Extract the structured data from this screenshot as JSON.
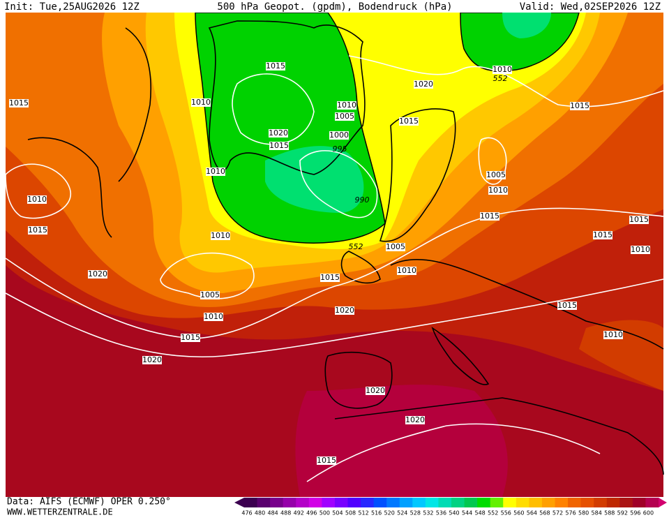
{
  "header": {
    "init": "Init: Tue,25AUG2026 12Z",
    "title": "500 hPa Geopot. (gpdm), Bodendruck (hPa)",
    "valid": "Valid: Wed,02SEP2026 12Z"
  },
  "isobar_labels": [
    1015,
    1010,
    1015,
    1020,
    1015,
    1010,
    1005,
    1000,
    995,
    990,
    1010,
    1010,
    1015,
    1010,
    552,
    1005,
    1020,
    1010,
    1015,
    1005,
    1010,
    1020,
    1015,
    1020,
    1020,
    1015,
    1010,
    552,
    1015,
    1005,
    1010,
    1015,
    1015,
    1015,
    1010,
    1015,
    1010,
    1020,
    1020,
    1015
  ],
  "legend": {
    "labels": [
      476,
      480,
      484,
      488,
      492,
      496,
      500,
      504,
      508,
      512,
      516,
      520,
      524,
      528,
      532,
      536,
      540,
      544,
      548,
      552,
      556,
      560,
      564,
      568,
      572,
      576,
      580,
      584,
      588,
      592,
      596,
      600
    ],
    "colors": [
      "#3c0050",
      "#5a006e",
      "#78008c",
      "#9600aa",
      "#b400c8",
      "#d200e6",
      "#a000ff",
      "#7800ff",
      "#5000ff",
      "#2828ff",
      "#0050ff",
      "#0078ff",
      "#00a0ff",
      "#00c8ff",
      "#00e6e6",
      "#00dcb4",
      "#00d282",
      "#00c850",
      "#00dc00",
      "#64f000",
      "#ffff00",
      "#ffdc00",
      "#ffbe00",
      "#ffa000",
      "#ff8200",
      "#f06400",
      "#e65000",
      "#d23c00",
      "#be2800",
      "#aa1414",
      "#a00028",
      "#b40050"
    ]
  },
  "footer": {
    "data": "Data: AIFS (ECMWF) OPER 0.250°",
    "site": "WWW.WETTERZENTRALE.DE"
  }
}
